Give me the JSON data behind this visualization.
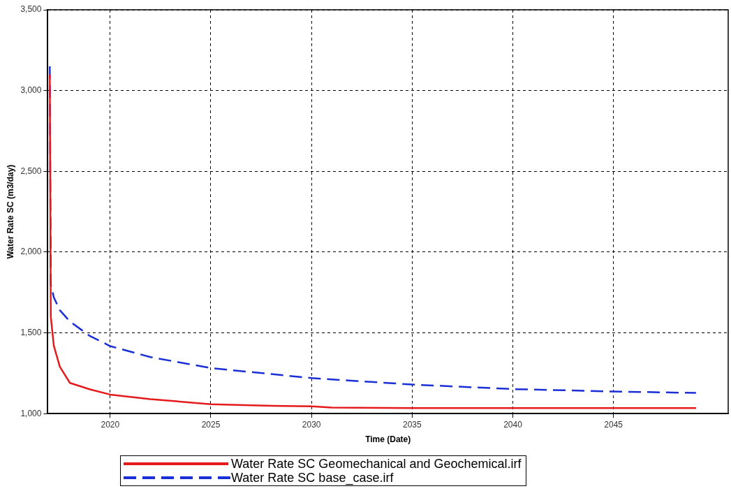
{
  "chart_data": {
    "type": "line",
    "xlabel": "Time (Date)",
    "ylabel": "Water Rate SC (m3/day)",
    "xlim": [
      2016.9,
      2050.7
    ],
    "xticks": [
      2020,
      2025,
      2030,
      2035,
      2040,
      2045
    ],
    "ylim": [
      1000,
      3500
    ],
    "yticks": [
      {
        "value": 1000,
        "label": "1,000"
      },
      {
        "value": 1500,
        "label": "1,500"
      },
      {
        "value": 2000,
        "label": "2,000"
      },
      {
        "value": 2500,
        "label": "2,500"
      },
      {
        "value": 3000,
        "label": "3,000"
      },
      {
        "value": 3500,
        "label": "3,500"
      }
    ],
    "grid": true,
    "legend": "bottom",
    "marker": "none",
    "series": [
      {
        "name": "Water Rate SC Geomechanical and Geochemical.irf",
        "color": "#e41a1c",
        "line_style": "solid",
        "x": [
          2017.0,
          2017.05,
          2017.2,
          2017.5,
          2018,
          2019,
          2020,
          2022,
          2025,
          2028,
          2030,
          2031,
          2035,
          2040,
          2045,
          2049.1
        ],
        "values": [
          3100,
          1600,
          1420,
          1290,
          1190,
          1150,
          1118,
          1090,
          1058,
          1048,
          1045,
          1038,
          1034,
          1034,
          1034,
          1034
        ]
      },
      {
        "name": "Water Rate SC base_case.irf",
        "color": "#1a2fd6",
        "line_style": "dashed",
        "x": [
          2017.0,
          2017.05,
          2017.2,
          2017.5,
          2018,
          2019,
          2020,
          2022,
          2025,
          2028,
          2030,
          2035,
          2040,
          2045,
          2049.1
        ],
        "values": [
          3150,
          1800,
          1720,
          1640,
          1570,
          1480,
          1418,
          1350,
          1282,
          1245,
          1220,
          1180,
          1152,
          1137,
          1128
        ]
      }
    ]
  }
}
